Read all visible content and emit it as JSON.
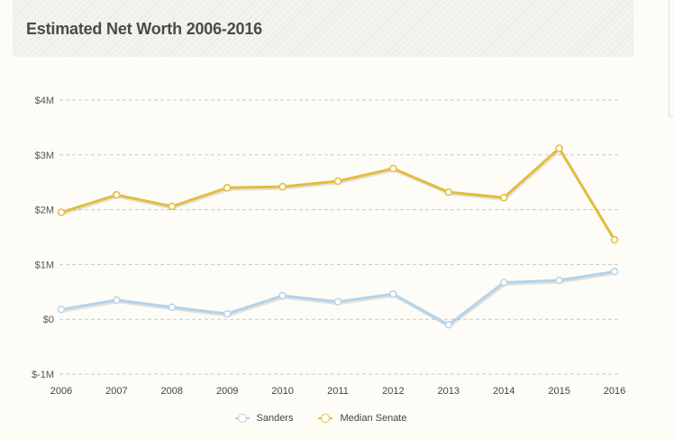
{
  "chart_data": {
    "type": "line",
    "title": "Estimated Net Worth 2006-2016",
    "xlabel": "",
    "ylabel": "",
    "x": [
      "2006",
      "2007",
      "2008",
      "2009",
      "2010",
      "2011",
      "2012",
      "2013",
      "2014",
      "2015",
      "2016"
    ],
    "y_ticks": [
      {
        "value": 4,
        "label": "$4M"
      },
      {
        "value": 3,
        "label": "$3M"
      },
      {
        "value": 2,
        "label": "$2M"
      },
      {
        "value": 1,
        "label": "$1M"
      },
      {
        "value": 0,
        "label": "$0"
      },
      {
        "value": -1,
        "label": "$-1M"
      }
    ],
    "ylim": [
      -1,
      4
    ],
    "y_unit": "$M",
    "grid": "horizontal dashed",
    "legend_position": "bottom-center",
    "series": [
      {
        "name": "Sanders",
        "color": "#b3d3ea",
        "values": [
          0.18,
          0.35,
          0.22,
          0.1,
          0.43,
          0.32,
          0.46,
          -0.1,
          0.67,
          0.71,
          0.87
        ]
      },
      {
        "name": "Median Senate",
        "color": "#e3bd3c",
        "values": [
          1.95,
          2.27,
          2.06,
          2.4,
          2.42,
          2.52,
          2.75,
          2.32,
          2.22,
          3.12,
          1.45
        ]
      }
    ]
  },
  "colors": {
    "background": "#fdfcf7",
    "grid": "#c8c8c8",
    "title_text": "#4a4a4a"
  }
}
